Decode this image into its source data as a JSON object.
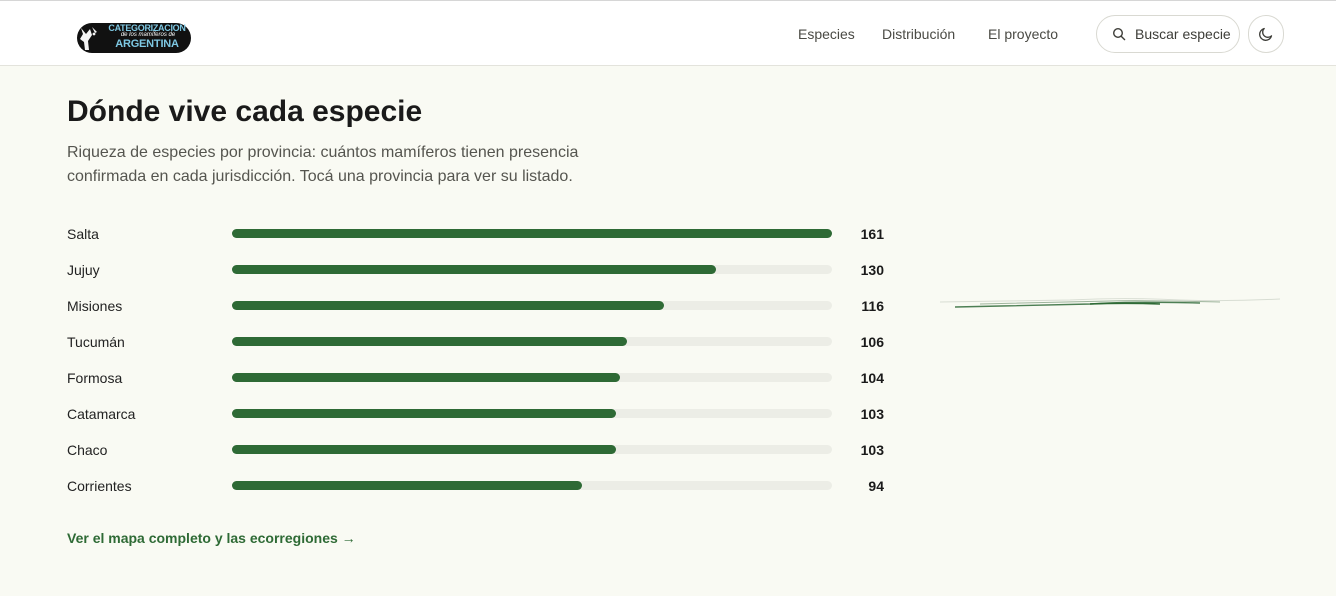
{
  "header": {
    "logo": {
      "line1": "CATEGORIZACION",
      "line2": "de los mamíferos de",
      "line3": "ARGENTINA"
    },
    "nav": [
      {
        "label": "Especies"
      },
      {
        "label": "Distribución"
      },
      {
        "label": "El proyecto"
      }
    ],
    "search": {
      "label": "Buscar especie",
      "icon": "search-icon"
    },
    "theme_toggle": {
      "icon": "moon-icon"
    }
  },
  "main": {
    "title": "Dónde vive cada especie",
    "subtitle": "Riqueza de especies por provincia: cuántos mamíferos tienen presencia confirmada en cada jurisdicción. Tocá una provincia para ver su listado.",
    "map_link": "Ver el mapa completo y las ecorregiones →"
  },
  "chart_data": {
    "type": "bar",
    "orientation": "horizontal",
    "categories": [
      "Salta",
      "Jujuy",
      "Misiones",
      "Tucumán",
      "Formosa",
      "Catamarca",
      "Chaco",
      "Corrientes"
    ],
    "values": [
      161,
      130,
      116,
      106,
      104,
      103,
      103,
      94
    ],
    "xlim": [
      0,
      161
    ],
    "bar_color": "#2e6a35",
    "track_color": "#ecede6"
  }
}
